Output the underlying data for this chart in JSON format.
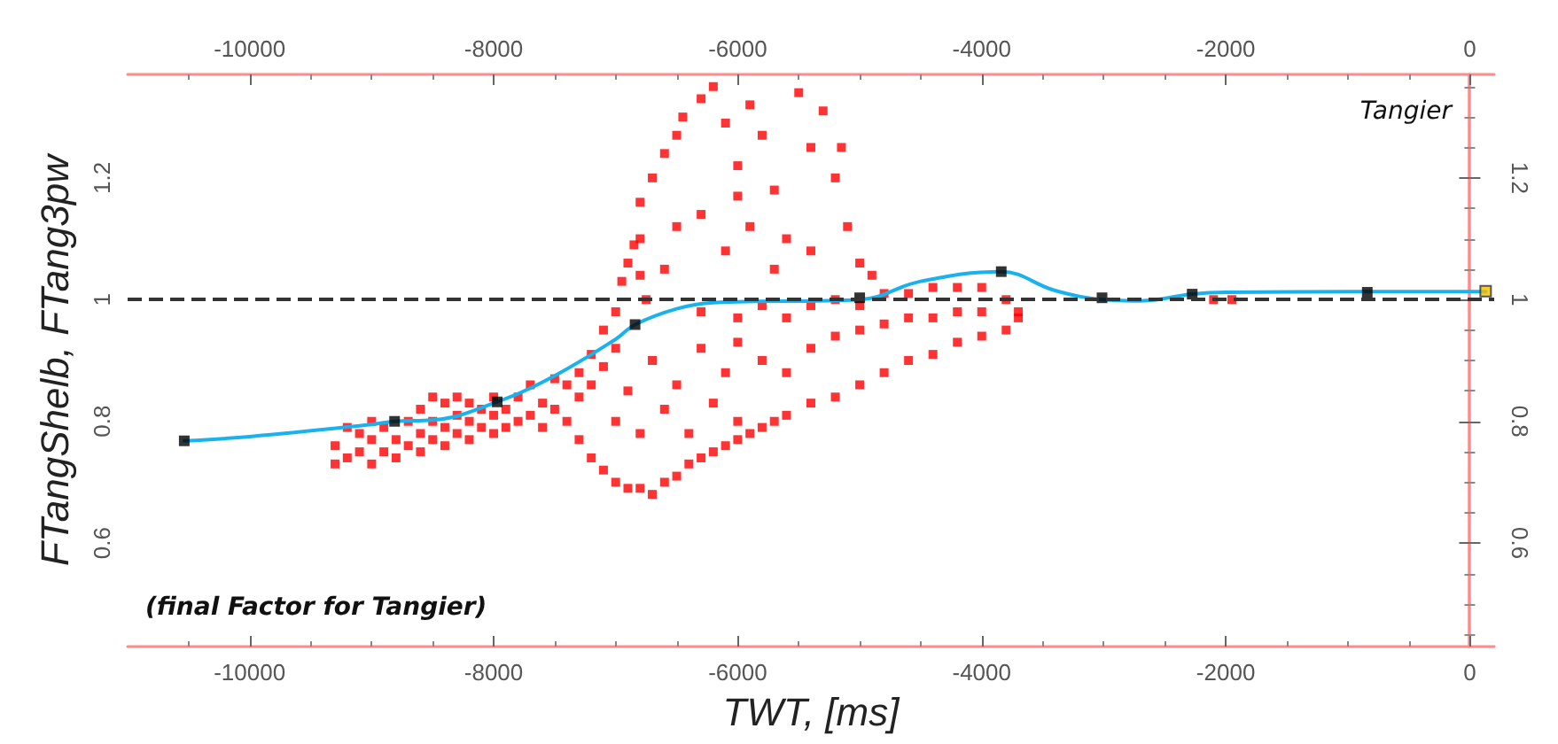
{
  "chart_data": {
    "type": "scatter",
    "xlabel": "TWT, [ms]",
    "ylabel": "FTangShelb, FTang3pw",
    "annotations": [
      "Tangier",
      "(final Factor for Tangier)"
    ],
    "xlim": [
      -11000,
      200
    ],
    "xticks": [
      -10000,
      -8000,
      -6000,
      -4000,
      -2000,
      0
    ],
    "x2lim": [
      -11000,
      200
    ],
    "x2ticks": [
      -10000,
      -8000,
      -6000,
      -4000,
      -2000,
      0
    ],
    "ylim": [
      0.43,
      1.37
    ],
    "yticks": [
      0.6,
      0.8,
      1,
      1.2
    ],
    "y2lim": [
      0.43,
      1.37
    ],
    "y2ticks": [
      0.6,
      0.8,
      1,
      1.2
    ],
    "ref_lines": [
      {
        "axis": "y",
        "value": 1,
        "color": "#333333",
        "line_style": "dashed"
      }
    ],
    "series": [
      {
        "color": "#ff0000",
        "marker": "square",
        "x": [
          -9300,
          -9300,
          -9200,
          -9200,
          -9100,
          -9100,
          -9000,
          -9000,
          -9000,
          -8900,
          -8900,
          -8800,
          -8800,
          -8700,
          -8700,
          -8600,
          -8600,
          -8600,
          -8500,
          -8500,
          -8500,
          -8400,
          -8400,
          -8400,
          -8300,
          -8300,
          -8300,
          -8200,
          -8200,
          -8200,
          -8100,
          -8100,
          -8000,
          -8000,
          -8000,
          -7900,
          -7900,
          -7800,
          -7800,
          -7700,
          -7700,
          -7600,
          -7600,
          -7500,
          -7500,
          -7400,
          -7300,
          -7300,
          -7200,
          -7200,
          -7100,
          -7100,
          -7000,
          -7000,
          -6950,
          -6900,
          -6850,
          -6800,
          -6800,
          -6750,
          -7400,
          -7300,
          -7200,
          -7100,
          -7000,
          -6900,
          -6800,
          -6700,
          -6600,
          -6500,
          -6400,
          -6300,
          -6200,
          -6100,
          -6000,
          -5900,
          -5800,
          -5700,
          -5600,
          -5400,
          -5200,
          -5000,
          -4800,
          -4600,
          -4400,
          -4200,
          -4000,
          -3800,
          -3700,
          -7000,
          -6900,
          -6800,
          -6700,
          -6600,
          -6500,
          -6400,
          -6300,
          -6200,
          -6100,
          -6000,
          -6300,
          -6000,
          -6000,
          -5800,
          -5800,
          -5600,
          -5600,
          -5400,
          -5400,
          -5200,
          -5200,
          -5000,
          -5000,
          -4800,
          -4800,
          -4600,
          -4600,
          -4400,
          -4400,
          -4200,
          -4200,
          -4000,
          -4000,
          -3800,
          -3700,
          -6800,
          -6700,
          -6600,
          -6500,
          -6450,
          -6300,
          -6200,
          -6100,
          -6000,
          -5900,
          -5800,
          -5700,
          -5600,
          -5500,
          -5400,
          -5300,
          -5200,
          -5150,
          -5100,
          -5000,
          -6300,
          -6100,
          -5900,
          -5700,
          -6500,
          -6000,
          -5400,
          -4900,
          -6600,
          -2100,
          -1950
        ],
        "values": [
          0.73,
          0.76,
          0.74,
          0.79,
          0.75,
          0.78,
          0.73,
          0.77,
          0.8,
          0.75,
          0.79,
          0.74,
          0.77,
          0.76,
          0.8,
          0.75,
          0.78,
          0.82,
          0.77,
          0.8,
          0.84,
          0.76,
          0.79,
          0.83,
          0.78,
          0.81,
          0.84,
          0.77,
          0.8,
          0.83,
          0.79,
          0.82,
          0.78,
          0.81,
          0.84,
          0.79,
          0.82,
          0.8,
          0.84,
          0.81,
          0.86,
          0.79,
          0.83,
          0.87,
          0.82,
          0.86,
          0.88,
          0.84,
          0.91,
          0.86,
          0.95,
          0.89,
          0.98,
          0.92,
          1.03,
          1.06,
          1.09,
          1.1,
          1.04,
          1.0,
          0.8,
          0.77,
          0.74,
          0.72,
          0.7,
          0.69,
          0.69,
          0.68,
          0.7,
          0.71,
          0.73,
          0.74,
          0.75,
          0.76,
          0.77,
          0.78,
          0.79,
          0.8,
          0.81,
          0.83,
          0.84,
          0.86,
          0.88,
          0.9,
          0.91,
          0.93,
          0.94,
          0.95,
          0.97,
          0.8,
          0.85,
          0.78,
          0.9,
          0.82,
          0.86,
          0.78,
          0.92,
          0.83,
          0.88,
          0.8,
          0.98,
          0.97,
          0.93,
          0.99,
          0.9,
          0.97,
          0.88,
          0.99,
          0.92,
          1.0,
          0.94,
          0.99,
          0.95,
          1.01,
          0.96,
          1.01,
          0.97,
          1.02,
          0.97,
          1.02,
          0.98,
          1.02,
          0.98,
          1.0,
          0.98,
          1.16,
          1.2,
          1.24,
          1.27,
          1.3,
          1.33,
          1.35,
          1.29,
          1.22,
          1.32,
          1.27,
          1.18,
          1.1,
          1.34,
          1.25,
          1.31,
          1.2,
          1.25,
          1.12,
          1.06,
          1.14,
          1.08,
          1.12,
          1.05,
          1.12,
          1.17,
          1.08,
          1.04,
          1.05,
          1.0,
          1.0
        ]
      },
      {
        "type": "line",
        "color": "#1ab2ee",
        "marker": "none",
        "x": [
          -10536,
          -10000,
          -9000,
          -8812,
          -8500,
          -7971,
          -7500,
          -7000,
          -6841,
          -6500,
          -6200,
          -5000,
          -4500,
          -3840,
          -3400,
          -3000,
          -2700,
          -2275,
          -2000,
          -840,
          130
        ],
        "values": [
          0.768,
          0.775,
          0.795,
          0.8,
          0.802,
          0.832,
          0.875,
          0.935,
          0.959,
          0.985,
          0.995,
          1.0,
          1.03,
          1.046,
          1.015,
          1.0,
          0.998,
          1.009,
          1.012,
          1.013,
          1.013
        ]
      },
      {
        "type": "scatter",
        "color": "#000000",
        "marker": "square",
        "x": [
          -10536,
          -8812,
          -7971,
          -6841,
          -5000,
          -3840,
          -3014,
          -2275,
          -840
        ],
        "values": [
          0.768,
          0.8,
          0.832,
          0.959,
          1.003,
          1.046,
          1.003,
          1.009,
          1.012
        ]
      },
      {
        "type": "scatter",
        "color": "#f0c000",
        "marker": "square",
        "x": [
          130
        ],
        "values": [
          1.014
        ]
      }
    ]
  }
}
